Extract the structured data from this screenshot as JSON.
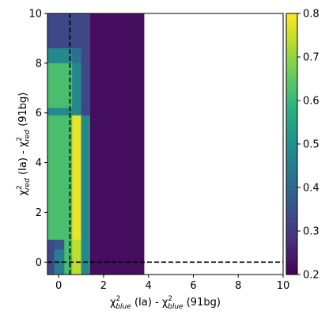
{
  "chart_data": {
    "type": "heatmap",
    "title": "",
    "xlabel_parts": [
      "χ",
      "2",
      "blue",
      " (Ia) - ",
      "χ",
      "2",
      "blue",
      " (91bg)"
    ],
    "ylabel_parts": [
      "χ",
      "2",
      "red",
      " (Ia) - ",
      "χ",
      "2",
      "red",
      " (91bg)"
    ],
    "xlim": [
      -0.5,
      10
    ],
    "ylim": [
      -0.5,
      10
    ],
    "xticks": [
      0,
      2,
      4,
      6,
      8,
      10
    ],
    "xtick_labels": [
      "0",
      "2",
      "4",
      "6",
      "8",
      "10"
    ],
    "yticks": [
      0,
      2,
      4,
      6,
      8,
      10
    ],
    "ytick_labels": [
      "0",
      "2",
      "4",
      "6",
      "8",
      "10"
    ],
    "reference_lines": {
      "x": 0.5,
      "y": 0.0
    },
    "colorbar": {
      "colormap": "viridis",
      "range": [
        0.2,
        0.8
      ],
      "ticks": [
        0.2,
        0.3,
        0.4,
        0.5,
        0.6,
        0.7,
        0.8
      ],
      "tick_labels": [
        "0.2",
        "0.3",
        "0.4",
        "0.5",
        "0.6",
        "0.7",
        "0.8"
      ]
    },
    "cells": [
      {
        "x0": -0.5,
        "x1": 1.4,
        "y0": 8.6,
        "y1": 10,
        "value": 0.33
      },
      {
        "x0": -0.5,
        "x1": 0.6,
        "y0": 8.0,
        "y1": 8.6,
        "value": 0.48
      },
      {
        "x0": 0.6,
        "x1": 1.0,
        "y0": 8.0,
        "y1": 8.6,
        "value": 0.42
      },
      {
        "x0": 1.0,
        "x1": 1.4,
        "y0": 8.0,
        "y1": 8.6,
        "value": 0.33
      },
      {
        "x0": -0.5,
        "x1": 0.6,
        "y0": 6.2,
        "y1": 8.0,
        "value": 0.62
      },
      {
        "x0": 0.6,
        "x1": 1.0,
        "y0": 6.2,
        "y1": 8.0,
        "value": 0.48
      },
      {
        "x0": 1.0,
        "x1": 1.4,
        "y0": 6.2,
        "y1": 8.0,
        "value": 0.33
      },
      {
        "x0": -0.5,
        "x1": 0.6,
        "y0": 5.9,
        "y1": 6.2,
        "value": 0.48
      },
      {
        "x0": 0.6,
        "x1": 1.0,
        "y0": 5.9,
        "y1": 6.2,
        "value": 0.48
      },
      {
        "x0": 1.0,
        "x1": 1.4,
        "y0": 5.9,
        "y1": 6.2,
        "value": 0.33
      },
      {
        "x0": -0.5,
        "x1": 0.6,
        "y0": 0.9,
        "y1": 5.9,
        "value": 0.62
      },
      {
        "x0": 0.6,
        "x1": 1.0,
        "y0": 0.9,
        "y1": 5.9,
        "value": 0.78
      },
      {
        "x0": 1.0,
        "x1": 1.4,
        "y0": 0.9,
        "y1": 5.9,
        "value": 0.48
      },
      {
        "x0": -0.5,
        "x1": -0.2,
        "y0": -0.5,
        "y1": 0.9,
        "value": 0.33
      },
      {
        "x0": -0.2,
        "x1": 0.25,
        "y0": 0.5,
        "y1": 0.9,
        "value": 0.36
      },
      {
        "x0": -0.2,
        "x1": 0.25,
        "y0": -0.5,
        "y1": 0.5,
        "value": 0.45
      },
      {
        "x0": 0.25,
        "x1": 0.6,
        "y0": -0.5,
        "y1": 0.9,
        "value": 0.62
      },
      {
        "x0": 0.6,
        "x1": 1.0,
        "y0": -0.5,
        "y1": 0.9,
        "value": 0.74
      },
      {
        "x0": 1.0,
        "x1": 1.4,
        "y0": -0.5,
        "y1": 0.9,
        "value": 0.48
      },
      {
        "x0": 1.4,
        "x1": 3.8,
        "y0": -0.5,
        "y1": 10,
        "value": 0.22
      }
    ]
  }
}
